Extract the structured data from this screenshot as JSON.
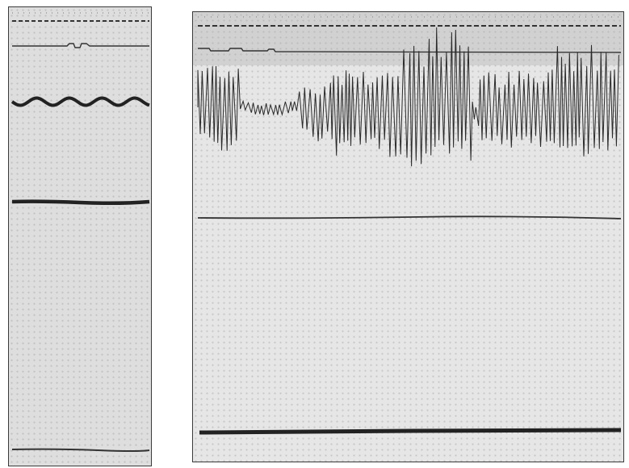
{
  "panels": [
    {
      "id": "left-trace-strip",
      "traces": [
        "timing-marks",
        "event-marker",
        "respiration-wave",
        "blood-pressure-line",
        "baseline"
      ]
    },
    {
      "id": "right-trace-strip",
      "traces": [
        "timing-marks",
        "event-marker",
        "oscillation-trace",
        "pressure-line",
        "baseline"
      ]
    }
  ],
  "colors": {
    "paper": "#e3e3e3",
    "ink": "#2a2a2a",
    "border": "#3a3a3a"
  }
}
